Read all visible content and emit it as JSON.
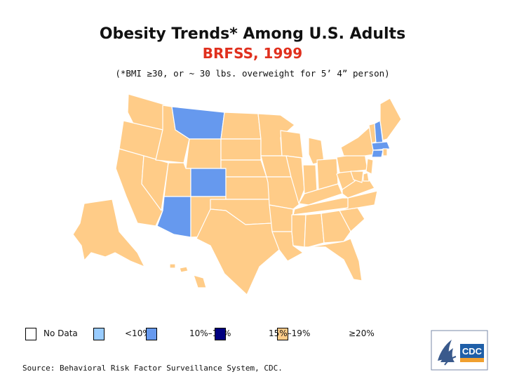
{
  "header": {
    "title": "Obesity Trends* Among U.S. Adults",
    "subtitle": "BRFSS, 1999",
    "note": "(*BMI ≥30, or ~ 30 lbs. overweight for 5’ 4” person)"
  },
  "colors": {
    "no_data": "#ffffff",
    "lt10": "#99ccff",
    "c10_14": "#6699ee",
    "c15_19": "#ffcc88",
    "ge20": "#000080",
    "outline": "#ffffff"
  },
  "legend": {
    "items": [
      {
        "label": "No Data",
        "color_key": "no_data"
      },
      {
        "label": "<10%",
        "color_key": "lt10"
      },
      {
        "label": "10%–14%",
        "color_key": "c10_14"
      },
      {
        "label": "15%–19%",
        "color_key": "c15_19"
      },
      {
        "label": "≥20%",
        "color_key": "ge20"
      }
    ]
  },
  "source": "Source: Behavioral Risk Factor Surveillance System, CDC.",
  "logo": {
    "text": "CDC"
  },
  "states": {
    "WA": "c15_19",
    "OR": "c15_19",
    "CA": "c15_19",
    "NV": "c15_19",
    "ID": "c15_19",
    "MT": "c10_14",
    "WY": "c15_19",
    "UT": "c15_19",
    "CO": "c10_14",
    "AZ": "c10_14",
    "NM": "c15_19",
    "ND": "c15_19",
    "SD": "c15_19",
    "NE": "c15_19",
    "KS": "c15_19",
    "OK": "c15_19",
    "TX": "c15_19",
    "MN": "c15_19",
    "IA": "c15_19",
    "MO": "c15_19",
    "AR": "c15_19",
    "LA": "c15_19",
    "WI": "c15_19",
    "IL": "c15_19",
    "MI": "c15_19",
    "IN": "c15_19",
    "OH": "c15_19",
    "KY": "c15_19",
    "TN": "c15_19",
    "MS": "c15_19",
    "AL": "c15_19",
    "GA": "c15_19",
    "FL": "c15_19",
    "SC": "c15_19",
    "NC": "c15_19",
    "VA": "c15_19",
    "WV": "c15_19",
    "PA": "c15_19",
    "NY": "c15_19",
    "VT": "c15_19",
    "NH": "c10_14",
    "ME": "c15_19",
    "MA": "c10_14",
    "CT": "c10_14",
    "RI": "c15_19",
    "NJ": "c15_19",
    "DE": "c15_19",
    "MD": "c15_19",
    "AK": "c15_19",
    "HI": "c15_19"
  }
}
